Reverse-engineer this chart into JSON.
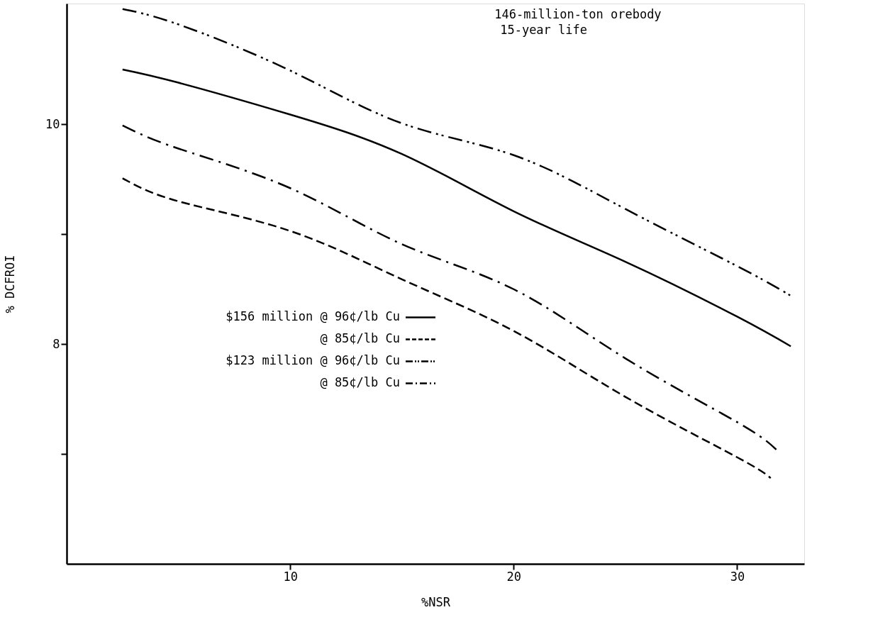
{
  "chart_data": {
    "type": "line",
    "xlabel": "%NSR",
    "ylabel": "% DCFROI",
    "annotations": [
      "146-million-ton orebody",
      "15-year life"
    ],
    "xlim": [
      0,
      33
    ],
    "xticks": [
      10,
      20,
      30
    ],
    "ylim": [
      6,
      11.1
    ],
    "yticks": [
      {
        "value": 7,
        "label": null
      },
      8,
      {
        "value": 9,
        "label": null
      },
      10
    ],
    "grid": false,
    "legend": "left",
    "marker": "none",
    "series": [
      {
        "name": "$156 million @ 96¢/lb Cu",
        "color": "#000000",
        "line_style": "solid",
        "x": [
          2.5,
          5,
          10,
          15,
          20,
          25,
          30,
          32.4
        ],
        "values": [
          10.5,
          10.38,
          10.09,
          9.73,
          9.21,
          8.75,
          8.25,
          7.98
        ]
      },
      {
        "name": "@ 85¢/lb Cu",
        "color": "#000000",
        "line_style": "dashed",
        "x": [
          2.5,
          5,
          10,
          15,
          20,
          25,
          30,
          31.5
        ],
        "values": [
          9.51,
          9.3,
          9.03,
          8.59,
          8.12,
          7.52,
          6.97,
          6.78
        ]
      },
      {
        "name": "$123 million @ 96¢/lb Cu",
        "color": "#000000",
        "line_style": "dashdotdot",
        "x": [
          2.5,
          5,
          10,
          15,
          20,
          25,
          30,
          32.4
        ],
        "values": [
          11.05,
          10.91,
          10.49,
          10.01,
          9.72,
          9.23,
          8.71,
          8.44
        ]
      },
      {
        "name": "@ 85¢/lb Cu",
        "color": "#000000",
        "line_style": "dashdot",
        "x": [
          2.5,
          5,
          10,
          15,
          20,
          25,
          30,
          31.75
        ],
        "values": [
          9.99,
          9.78,
          9.42,
          8.91,
          8.5,
          7.87,
          7.29,
          7.04
        ]
      }
    ]
  }
}
